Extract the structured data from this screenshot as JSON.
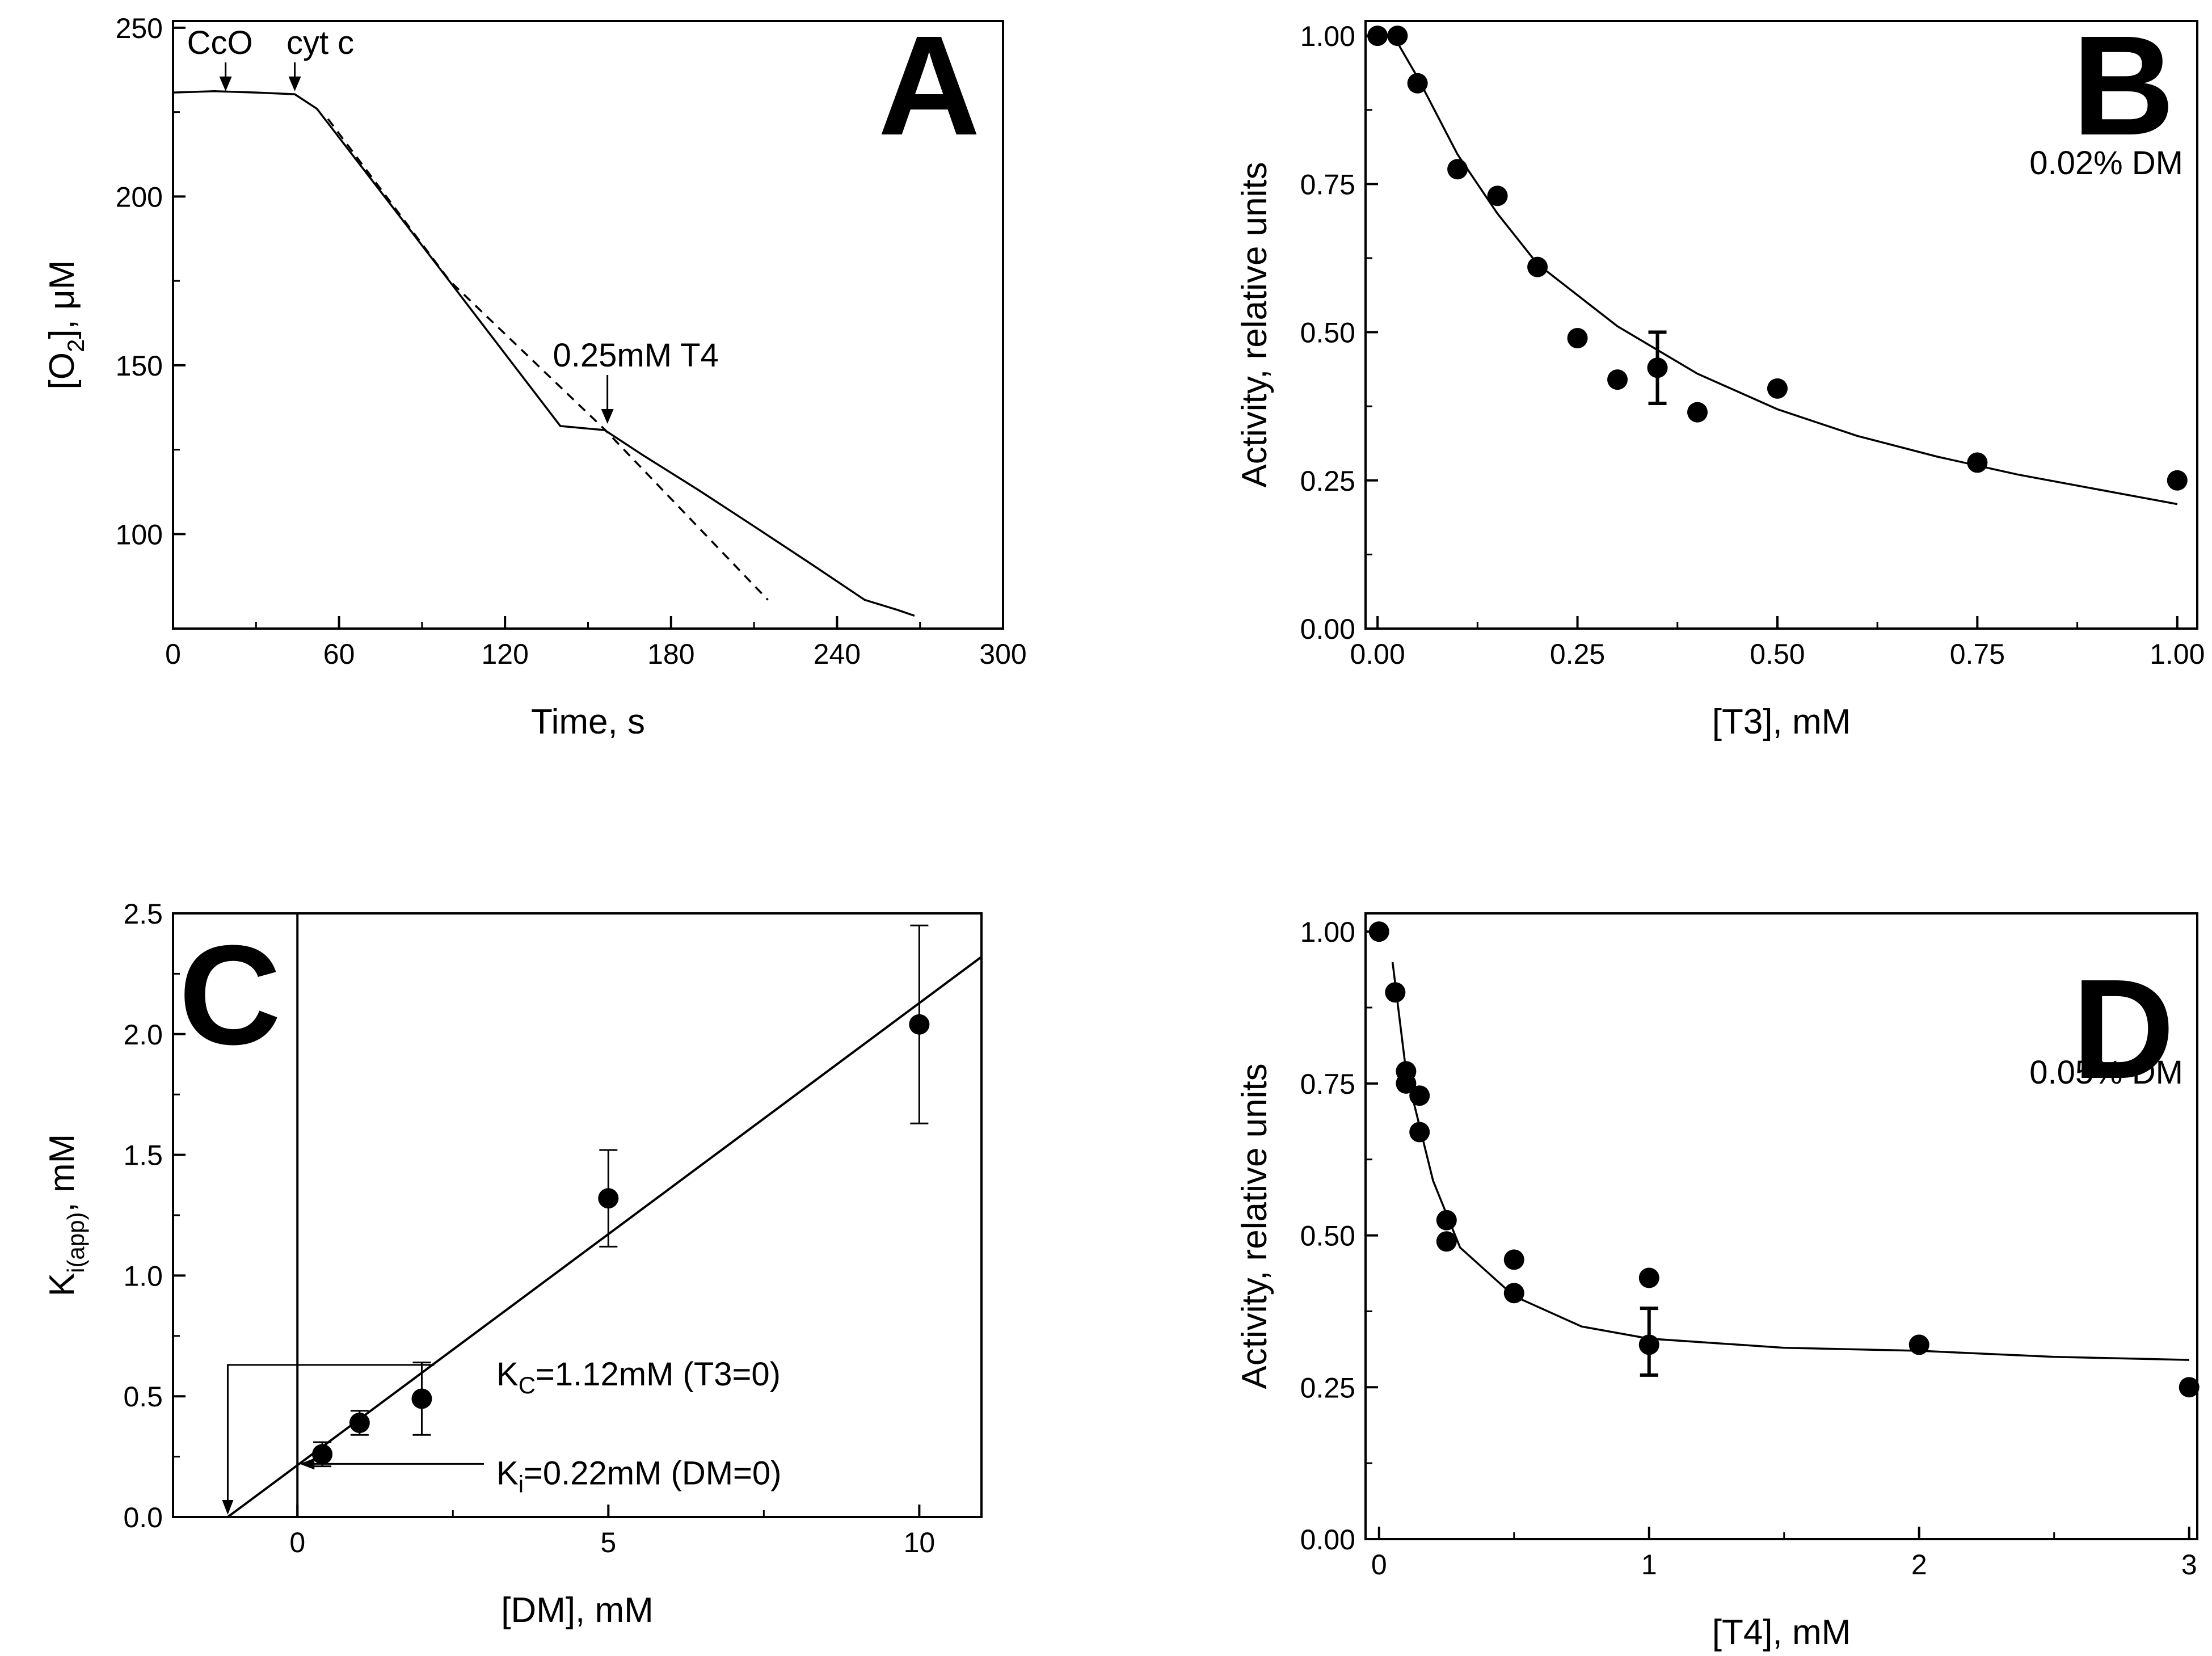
{
  "chart_data": [
    {
      "id": "A",
      "type": "line",
      "panel_letter": "A",
      "xlabel": "Time, s",
      "ylabel_parts": [
        "[O",
        "2",
        "], μM"
      ],
      "xlim": [
        0,
        300
      ],
      "ylim": [
        72,
        252
      ],
      "xticks": [
        0,
        60,
        120,
        180,
        240,
        300
      ],
      "yticks": [
        100,
        150,
        200,
        250
      ],
      "series": [
        {
          "name": "O2 trace",
          "style": "solid",
          "x": [
            0,
            15,
            30,
            44,
            52,
            60,
            80,
            100,
            120,
            140,
            156,
            170,
            190,
            210,
            230,
            250,
            262,
            268
          ],
          "y": [
            230.8,
            231.2,
            230.8,
            230.3,
            226,
            217.5,
            196.2,
            174.8,
            153.4,
            132,
            130.8,
            123.3,
            113,
            102.3,
            91.5,
            80.5,
            77.5,
            75.8
          ]
        },
        {
          "name": "extrapolation",
          "style": "dashed",
          "x": [
            56,
            100,
            156,
            215
          ],
          "y": [
            223,
            175,
            131,
            80.5
          ]
        }
      ],
      "annotations": [
        {
          "text": "CcO",
          "x": 19,
          "y": 230.5
        },
        {
          "text": "cyt c",
          "x": 44,
          "y": 230.5
        },
        {
          "text": "0.25mM T4",
          "x": 157,
          "y": 132
        }
      ]
    },
    {
      "id": "B",
      "type": "scatter",
      "panel_letter": "B",
      "xlabel": "[T3], mM",
      "ylabel": "Activity, relative units",
      "xlim": [
        -0.015,
        1.025
      ],
      "ylim": [
        0,
        1.025
      ],
      "xticks": [
        0.0,
        0.25,
        0.5,
        0.75,
        1.0
      ],
      "xtick_labels": [
        "0.00",
        "0.25",
        "0.50",
        "0.75",
        "1.00"
      ],
      "yticks": [
        0.0,
        0.25,
        0.5,
        0.75,
        1.0
      ],
      "ytick_labels": [
        "0.00",
        "0.25",
        "0.50",
        "0.75",
        "1.00"
      ],
      "points": {
        "x": [
          0.0,
          0.025,
          0.05,
          0.1,
          0.15,
          0.2,
          0.25,
          0.3,
          0.35,
          0.4,
          0.5,
          0.75,
          1.0
        ],
        "y": [
          1.0,
          1.0,
          0.92,
          0.775,
          0.73,
          0.61,
          0.49,
          0.42,
          0.44,
          0.365,
          0.405,
          0.28,
          0.25
        ]
      },
      "error_bars": [
        {
          "x": 0.35,
          "y": 0.44,
          "low": 0.38,
          "high": 0.5
        }
      ],
      "fit": {
        "x": [
          0.02,
          0.05,
          0.1,
          0.15,
          0.2,
          0.3,
          0.4,
          0.5,
          0.6,
          0.7,
          0.8,
          0.9,
          1.0
        ],
        "y": [
          1.0,
          0.93,
          0.8,
          0.7,
          0.615,
          0.51,
          0.43,
          0.37,
          0.325,
          0.29,
          0.26,
          0.235,
          0.21
        ]
      },
      "annotation": "0.02% DM"
    },
    {
      "id": "C",
      "type": "scatter",
      "panel_letter": "C",
      "xlabel": "[DM], mM",
      "ylabel_parts": [
        "K",
        "i(app)",
        ", mM"
      ],
      "xlim": [
        -2,
        11
      ],
      "ylim": [
        0,
        2.5
      ],
      "xticks": [
        0,
        5,
        10
      ],
      "yticks": [
        0.0,
        0.5,
        1.0,
        1.5,
        2.0,
        2.5
      ],
      "ytick_labels": [
        "0.0",
        "0.5",
        "1.0",
        "1.5",
        "2.0",
        "2.5"
      ],
      "points": {
        "x": [
          0.4,
          1,
          2,
          5,
          10
        ],
        "y": [
          0.26,
          0.39,
          0.49,
          1.32,
          2.04
        ]
      },
      "error_bars": [
        {
          "x": 0.4,
          "y": 0.26,
          "low": 0.21,
          "high": 0.31
        },
        {
          "x": 1,
          "y": 0.39,
          "low": 0.34,
          "high": 0.44
        },
        {
          "x": 2,
          "y": 0.49,
          "low": 0.34,
          "high": 0.64
        },
        {
          "x": 5,
          "y": 1.32,
          "low": 1.12,
          "high": 1.52
        },
        {
          "x": 10,
          "y": 2.04,
          "low": 1.63,
          "high": 2.45
        }
      ],
      "fit_line": {
        "x": [
          -1.12,
          11
        ],
        "y": [
          0,
          2.32
        ]
      },
      "annotations": [
        {
          "parts": [
            "K",
            "C",
            "=1.12mM (T3=0)"
          ],
          "points_to": {
            "x": -1.12,
            "y": 0
          }
        },
        {
          "parts": [
            "K",
            "i",
            "=0.22mM (DM=0)"
          ],
          "points_to": {
            "x": 0,
            "y": 0.22
          }
        }
      ]
    },
    {
      "id": "D",
      "type": "scatter",
      "panel_letter": "D",
      "xlabel": "[T4], mM",
      "ylabel": "Activity, relative units",
      "xlim": [
        -0.05,
        3.03
      ],
      "ylim": [
        0,
        1.03
      ],
      "xticks": [
        0,
        1,
        2,
        3
      ],
      "yticks": [
        0.0,
        0.25,
        0.5,
        0.75,
        1.0
      ],
      "ytick_labels": [
        "0.00",
        "0.25",
        "0.50",
        "0.75",
        "1.00"
      ],
      "points": {
        "x": [
          0.0,
          0.06,
          0.1,
          0.1,
          0.15,
          0.15,
          0.25,
          0.25,
          0.5,
          0.5,
          1.0,
          1.0,
          2.0,
          3.0
        ],
        "y": [
          1.0,
          0.9,
          0.77,
          0.75,
          0.73,
          0.67,
          0.525,
          0.49,
          0.46,
          0.405,
          0.43,
          0.32,
          0.32,
          0.25
        ]
      },
      "error_bars": [
        {
          "x": 1.0,
          "y": 0.325,
          "low": 0.27,
          "high": 0.38
        }
      ],
      "fit": {
        "x": [
          0.05,
          0.1,
          0.15,
          0.2,
          0.3,
          0.5,
          0.75,
          1.0,
          1.5,
          2.0,
          2.5,
          3.0
        ],
        "y": [
          0.95,
          0.77,
          0.68,
          0.59,
          0.48,
          0.4,
          0.35,
          0.33,
          0.315,
          0.31,
          0.3,
          0.295
        ]
      },
      "annotation": "0.05% DM"
    }
  ]
}
